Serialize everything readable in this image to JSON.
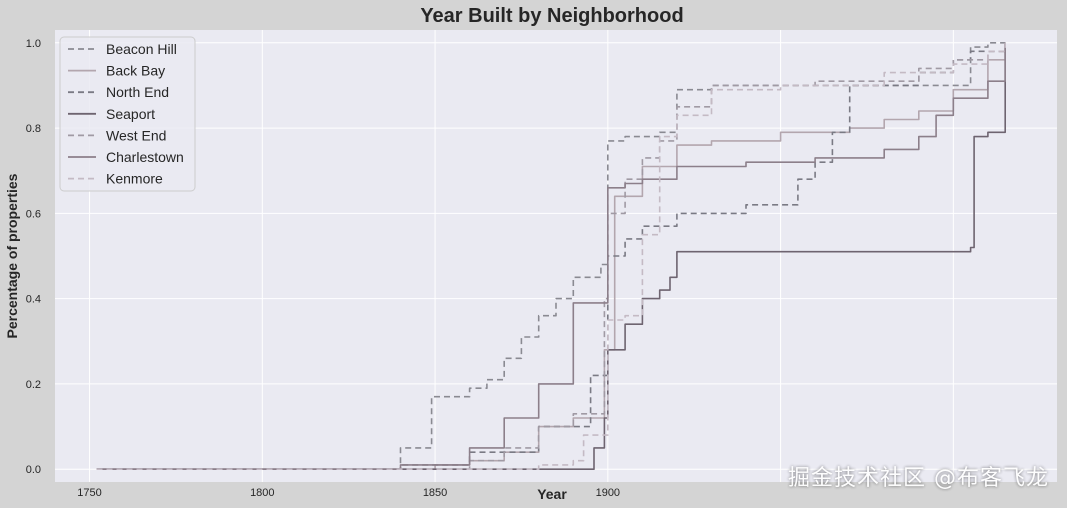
{
  "chart_data": {
    "type": "line",
    "title": "Year Built by Neighborhood",
    "xlabel": "Year",
    "ylabel": "Percentage of properties",
    "xlim": [
      1740,
      2030
    ],
    "ylim": [
      -0.03,
      1.03
    ],
    "xticks": [
      1750,
      1800,
      1850,
      1900
    ],
    "yticks": [
      0.0,
      0.2,
      0.4,
      0.6,
      0.8,
      1.0
    ],
    "xtick_labels": [
      "1750",
      "1800",
      "1850",
      "1900"
    ],
    "ytick_labels": [
      "0.0",
      "0.2",
      "0.4",
      "0.6",
      "0.8",
      "1.0"
    ],
    "grid": true,
    "legend_position": "top-left",
    "colors": {
      "figure_bg": "#d4d4d4",
      "plot_bg": "#eaeaf2",
      "grid": "#ffffff"
    },
    "series": [
      {
        "name": "Beacon Hill",
        "color": "#8a8a92",
        "dash": "6,4",
        "x": [
          1752,
          1800,
          1840,
          1849,
          1849,
          1860,
          1865,
          1870,
          1875,
          1880,
          1885,
          1890,
          1895,
          1898,
          1900,
          1905,
          1915,
          1920,
          1930,
          1960,
          1990,
          2003,
          2005,
          2010,
          2015
        ],
        "y": [
          0.0,
          0.0,
          0.05,
          0.06,
          0.17,
          0.19,
          0.21,
          0.26,
          0.31,
          0.36,
          0.4,
          0.45,
          0.45,
          0.48,
          0.77,
          0.78,
          0.79,
          0.89,
          0.9,
          0.9,
          0.9,
          0.9,
          0.99,
          1.0,
          1.0
        ]
      },
      {
        "name": "Back Bay",
        "color": "#b3a6ae",
        "dash": "",
        "x": [
          1752,
          1850,
          1860,
          1870,
          1880,
          1890,
          1899,
          1902,
          1910,
          1920,
          1930,
          1950,
          1960,
          1970,
          1980,
          1990,
          2000,
          2010,
          2015
        ],
        "y": [
          0.0,
          0.01,
          0.02,
          0.04,
          0.1,
          0.12,
          0.28,
          0.64,
          0.71,
          0.76,
          0.77,
          0.79,
          0.79,
          0.8,
          0.82,
          0.84,
          0.89,
          0.96,
          1.0
        ]
      },
      {
        "name": "North End",
        "color": "#7a7a84",
        "dash": "6,4",
        "x": [
          1752,
          1820,
          1840,
          1860,
          1880,
          1895,
          1900,
          1905,
          1910,
          1920,
          1940,
          1950,
          1955,
          1960,
          1965,
          1970,
          1990,
          2000,
          2005,
          2015
        ],
        "y": [
          0.0,
          0.0,
          0.01,
          0.04,
          0.1,
          0.22,
          0.5,
          0.54,
          0.57,
          0.6,
          0.62,
          0.62,
          0.68,
          0.72,
          0.79,
          0.9,
          0.93,
          0.96,
          0.98,
          1.0
        ]
      },
      {
        "name": "Seaport",
        "color": "#6e6470",
        "dash": "",
        "x": [
          1752,
          1880,
          1893,
          1896,
          1899,
          1900,
          1905,
          1910,
          1915,
          1918,
          1920,
          1950,
          2000,
          2005,
          2006,
          2010,
          2012,
          2015
        ],
        "y": [
          0.0,
          0.0,
          0.0,
          0.05,
          0.12,
          0.28,
          0.34,
          0.4,
          0.42,
          0.45,
          0.51,
          0.51,
          0.51,
          0.52,
          0.78,
          0.79,
          0.79,
          1.0
        ]
      },
      {
        "name": "West End",
        "color": "#a09aa4",
        "dash": "6,4",
        "x": [
          1752,
          1840,
          1860,
          1870,
          1880,
          1890,
          1899,
          1900,
          1905,
          1910,
          1915,
          1920,
          1930,
          1960,
          1990,
          2000,
          2010,
          2015
        ],
        "y": [
          0.0,
          0.0,
          0.02,
          0.05,
          0.1,
          0.13,
          0.4,
          0.6,
          0.68,
          0.73,
          0.77,
          0.85,
          0.9,
          0.91,
          0.94,
          0.96,
          0.98,
          1.0
        ]
      },
      {
        "name": "Charlestown",
        "color": "#8c7f8a",
        "dash": "",
        "x": [
          1752,
          1840,
          1860,
          1870,
          1880,
          1890,
          1899,
          1900,
          1905,
          1910,
          1920,
          1940,
          1960,
          1970,
          1980,
          1990,
          1995,
          2000,
          2010,
          2015
        ],
        "y": [
          0.0,
          0.01,
          0.05,
          0.12,
          0.2,
          0.39,
          0.39,
          0.66,
          0.67,
          0.68,
          0.71,
          0.72,
          0.73,
          0.73,
          0.75,
          0.78,
          0.83,
          0.87,
          0.91,
          1.0
        ]
      },
      {
        "name": "Kenmore",
        "color": "#c4bac4",
        "dash": "6,4",
        "x": [
          1752,
          1870,
          1880,
          1890,
          1893,
          1900,
          1905,
          1910,
          1915,
          1920,
          1930,
          1950,
          1980,
          2000,
          2010,
          2015
        ],
        "y": [
          0.0,
          0.0,
          0.01,
          0.02,
          0.08,
          0.35,
          0.36,
          0.55,
          0.78,
          0.83,
          0.89,
          0.9,
          0.93,
          0.95,
          0.98,
          1.0
        ]
      }
    ]
  },
  "watermark": "掘金技术社区 @布客飞龙"
}
